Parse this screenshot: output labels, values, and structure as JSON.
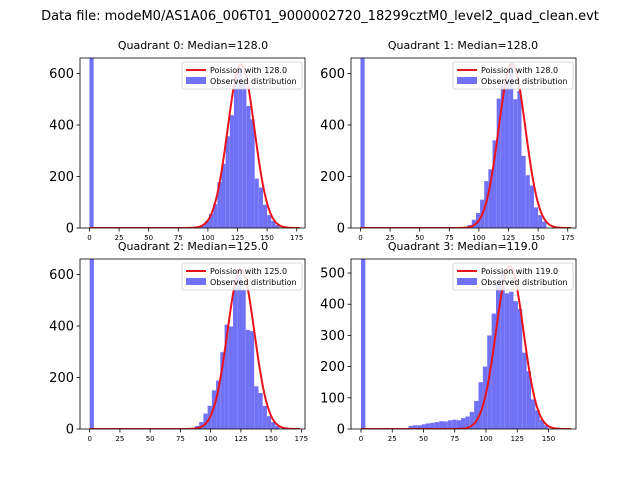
{
  "figure": {
    "suptitle": "Data file: modeM0/AS1A06_006T01_9000002720_18299cztM0_level2_quad_clean.evt"
  },
  "colors": {
    "observed": "#7171f5",
    "poisson": "#e8141c",
    "axes": "#000000",
    "background": "#ffffff"
  },
  "chart_data": [
    {
      "type": "bar",
      "title": "Quadrant 0: Median=128.0",
      "xlim": [
        -8,
        182
      ],
      "ylim": [
        0,
        660
      ],
      "xticks": [
        0,
        25,
        50,
        75,
        100,
        125,
        150,
        175
      ],
      "yticks": [
        0,
        200,
        400,
        600
      ],
      "bin_width": 3.5,
      "observed_name": "Observed distribution",
      "observed_bins": [
        [
          0,
          660
        ],
        [
          94,
          10
        ],
        [
          97.5,
          27
        ],
        [
          101,
          55
        ],
        [
          104.5,
          92
        ],
        [
          108,
          178
        ],
        [
          111.5,
          249
        ],
        [
          115,
          356
        ],
        [
          118.5,
          438
        ],
        [
          122,
          604
        ],
        [
          125.5,
          620
        ],
        [
          129,
          560
        ],
        [
          132.5,
          474
        ],
        [
          136,
          422
        ],
        [
          139.5,
          192
        ],
        [
          143,
          157
        ],
        [
          146.5,
          90
        ],
        [
          150,
          50
        ],
        [
          153.5,
          27
        ],
        [
          157,
          12
        ]
      ],
      "poisson_name": "Poission with 128.0",
      "poisson_mu": 128.0,
      "poisson_peak": 635,
      "legend": [
        "Poission with 128.0",
        "Observed distribution"
      ],
      "legend_loc": "upper right"
    },
    {
      "type": "bar",
      "title": "Quadrant 1: Median=128.0",
      "xlim": [
        -8,
        182
      ],
      "ylim": [
        0,
        660
      ],
      "xticks": [
        0,
        25,
        50,
        75,
        100,
        125,
        150,
        175
      ],
      "yticks": [
        0,
        200,
        400,
        600
      ],
      "bin_width": 3.5,
      "observed_name": "Observed distribution",
      "observed_bins": [
        [
          0,
          660
        ],
        [
          90.5,
          12
        ],
        [
          94,
          32
        ],
        [
          97.5,
          58
        ],
        [
          101,
          110
        ],
        [
          104.5,
          182
        ],
        [
          108,
          228
        ],
        [
          111.5,
          340
        ],
        [
          115,
          502
        ],
        [
          118.5,
          555
        ],
        [
          122,
          580
        ],
        [
          125.5,
          640
        ],
        [
          129,
          500
        ],
        [
          132.5,
          532
        ],
        [
          136,
          280
        ],
        [
          139.5,
          205
        ],
        [
          143,
          165
        ],
        [
          146.5,
          80
        ],
        [
          150,
          50
        ],
        [
          153.5,
          25
        ]
      ],
      "poisson_name": "Poission with 128.0",
      "poisson_mu": 128.0,
      "poisson_peak": 638,
      "legend": [
        "Poission with 128.0",
        "Observed distribution"
      ],
      "legend_loc": "upper right"
    },
    {
      "type": "bar",
      "title": "Quadrant 2: Median=125.0",
      "xlim": [
        -8,
        178
      ],
      "ylim": [
        0,
        660
      ],
      "xticks": [
        0,
        25,
        50,
        75,
        100,
        125,
        150,
        175
      ],
      "yticks": [
        0,
        200,
        400,
        600
      ],
      "bin_width": 3.5,
      "observed_name": "Observed distribution",
      "observed_bins": [
        [
          0,
          660
        ],
        [
          87,
          12
        ],
        [
          90.5,
          27
        ],
        [
          94,
          60
        ],
        [
          97.5,
          90
        ],
        [
          101,
          150
        ],
        [
          104.5,
          188
        ],
        [
          108,
          298
        ],
        [
          111.5,
          405
        ],
        [
          115,
          398
        ],
        [
          118.5,
          580
        ],
        [
          122,
          600
        ],
        [
          125.5,
          542
        ],
        [
          129,
          385
        ],
        [
          132.5,
          380
        ],
        [
          136,
          166
        ],
        [
          139.5,
          140
        ],
        [
          143,
          90
        ],
        [
          146.5,
          50
        ],
        [
          150,
          27
        ],
        [
          153.5,
          12
        ]
      ],
      "poisson_name": "Poission with 125.0",
      "poisson_mu": 125.0,
      "poisson_peak": 620,
      "legend": [
        "Poission with 125.0",
        "Observed distribution"
      ],
      "legend_loc": "upper right"
    },
    {
      "type": "bar",
      "title": "Quadrant 3: Median=119.0",
      "xlim": [
        -8,
        172
      ],
      "ylim": [
        0,
        545
      ],
      "xticks": [
        0,
        25,
        50,
        75,
        100,
        125,
        150
      ],
      "yticks": [
        0,
        100,
        200,
        300,
        400,
        500
      ],
      "bin_width": 3.5,
      "observed_name": "Observed distribution",
      "observed_bins": [
        [
          0,
          545
        ],
        [
          38,
          10
        ],
        [
          41.5,
          12
        ],
        [
          45,
          12
        ],
        [
          48.5,
          15
        ],
        [
          52,
          18
        ],
        [
          55.5,
          20
        ],
        [
          59,
          22
        ],
        [
          62.5,
          25
        ],
        [
          66,
          24
        ],
        [
          69.5,
          28
        ],
        [
          73,
          30
        ],
        [
          76.5,
          28
        ],
        [
          80,
          35
        ],
        [
          83.5,
          40
        ],
        [
          87,
          55
        ],
        [
          90.5,
          90
        ],
        [
          94,
          150
        ],
        [
          97.5,
          200
        ],
        [
          101,
          300
        ],
        [
          104.5,
          370
        ],
        [
          108,
          470
        ],
        [
          111.5,
          500
        ],
        [
          115,
          435
        ],
        [
          118.5,
          440
        ],
        [
          122,
          410
        ],
        [
          125.5,
          385
        ],
        [
          129,
          245
        ],
        [
          132.5,
          185
        ],
        [
          136,
          95
        ],
        [
          139.5,
          60
        ],
        [
          143,
          30
        ],
        [
          146.5,
          12
        ]
      ],
      "poisson_name": "Poission with 119.0",
      "poisson_mu": 119.0,
      "poisson_peak": 522,
      "legend": [
        "Poission with 119.0",
        "Observed distribution"
      ],
      "legend_loc": "upper right"
    }
  ]
}
